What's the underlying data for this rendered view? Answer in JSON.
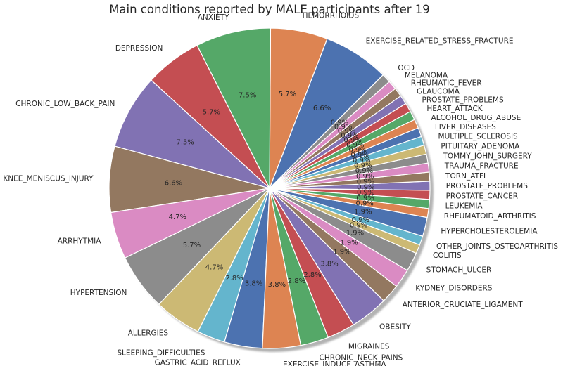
{
  "chart_data": {
    "type": "pie",
    "title": "Main conditions reported by MALE participants after 19",
    "start_angle_deg": 45,
    "direction": "counterclockwise",
    "shadow": true,
    "slices": [
      {
        "label": "EXERCISE_RELATED_STRESS_FRACTURE",
        "value": 6.6,
        "pct_label": "6.6%",
        "color": "#4c72b0"
      },
      {
        "label": "HEMORRHOIDS",
        "value": 5.7,
        "pct_label": "5.7%",
        "color": "#dd8452"
      },
      {
        "label": "ANXIETY",
        "value": 7.5,
        "pct_label": "7.5%",
        "color": "#55a868"
      },
      {
        "label": "DEPRESSION",
        "value": 5.7,
        "pct_label": "5.7%",
        "color": "#c44e52"
      },
      {
        "label": "CHRONIC_LOW_BACK_PAIN",
        "value": 7.5,
        "pct_label": "7.5%",
        "color": "#8172b3"
      },
      {
        "label": "KNEE_MENISCUS_INJURY",
        "value": 6.6,
        "pct_label": "6.6%",
        "color": "#937860"
      },
      {
        "label": "ARRHYTMIA",
        "value": 4.7,
        "pct_label": "4.7%",
        "color": "#da8bc3"
      },
      {
        "label": "HYPERTENSION",
        "value": 5.7,
        "pct_label": "5.7%",
        "color": "#8c8c8c"
      },
      {
        "label": "ALLERGIES",
        "value": 4.7,
        "pct_label": "4.7%",
        "color": "#ccb974"
      },
      {
        "label": "SLEEPING_DIFFICULTIES",
        "value": 2.8,
        "pct_label": "2.8%",
        "color": "#64b5cd"
      },
      {
        "label": "GASTRIC_ACID_REFLUX",
        "value": 3.8,
        "pct_label": "3.8%",
        "color": "#4c72b0"
      },
      {
        "label": "EXERCISE_INDUCE_ASTHMA",
        "value": 3.8,
        "pct_label": "3.8%",
        "color": "#dd8452"
      },
      {
        "label": "CHRONIC_NECK_PAINS",
        "value": 2.8,
        "pct_label": "2.8%",
        "color": "#55a868"
      },
      {
        "label": "MIGRAINES",
        "value": 2.8,
        "pct_label": "2.8%",
        "color": "#c44e52"
      },
      {
        "label": "OBESITY",
        "value": 3.8,
        "pct_label": "3.8%",
        "color": "#8172b3"
      },
      {
        "label": "ANTERIOR_CRUCIATE_LIGAMENT",
        "value": 1.9,
        "pct_label": "1.9%",
        "color": "#937860"
      },
      {
        "label": "KYDNEY_DISORDERS",
        "value": 1.9,
        "pct_label": "1.9%",
        "color": "#da8bc3"
      },
      {
        "label": "STOMACH_ULCER",
        "value": 1.9,
        "pct_label": "1.9%",
        "color": "#8c8c8c"
      },
      {
        "label": "COLITIS",
        "value": 0.9,
        "pct_label": "0.9%",
        "color": "#ccb974"
      },
      {
        "label": "OTHER_JOINTS_OSTEOARTHRITIS",
        "value": 0.9,
        "pct_label": "0.9%",
        "color": "#64b5cd"
      },
      {
        "label": "HYPERCHOLESTEROLEMIA",
        "value": 1.9,
        "pct_label": "1.9%",
        "color": "#4c72b0"
      },
      {
        "label": "RHEUMATOID_ARTHRITIS",
        "value": 0.9,
        "pct_label": "0.9%",
        "color": "#dd8452"
      },
      {
        "label": "LEUKEMIA",
        "value": 0.9,
        "pct_label": "0.9%",
        "color": "#55a868"
      },
      {
        "label": "PROSTATE_CANCER",
        "value": 0.9,
        "pct_label": "0.9%",
        "color": "#c44e52"
      },
      {
        "label": "PROSTATE_PROBLEMS",
        "value": 0.9,
        "pct_label": "0.9%",
        "color": "#8172b3"
      },
      {
        "label": "TORN_ATFL",
        "value": 0.9,
        "pct_label": "0.9%",
        "color": "#937860"
      },
      {
        "label": "TRAUMA_FRACTURE",
        "value": 0.9,
        "pct_label": "0.9%",
        "color": "#da8bc3"
      },
      {
        "label": "TOMMY_JOHN_SURGERY",
        "value": 0.9,
        "pct_label": "0.9%",
        "color": "#8c8c8c"
      },
      {
        "label": "PITUITARY_ADENOMA",
        "value": 0.9,
        "pct_label": "0.9%",
        "color": "#ccb974"
      },
      {
        "label": "MULTIPLE_SCLEROSIS",
        "value": 0.9,
        "pct_label": "0.9%",
        "color": "#64b5cd"
      },
      {
        "label": "LIVER_DISEASES",
        "value": 0.9,
        "pct_label": "0.9%",
        "color": "#4c72b0"
      },
      {
        "label": "ALCOHOL_DRUG_ABUSE",
        "value": 0.9,
        "pct_label": "0.9%",
        "color": "#dd8452"
      },
      {
        "label": "HEART_ATTACK",
        "value": 0.9,
        "pct_label": "0.9%",
        "color": "#55a868"
      },
      {
        "label": "PROSTATE_PROBLEMS",
        "value": 0.9,
        "pct_label": "0.9%",
        "color": "#c44e52"
      },
      {
        "label": "GLAUCOMA",
        "value": 0.9,
        "pct_label": "0.9%",
        "color": "#8172b3"
      },
      {
        "label": "RHEUMATIC_FEVER",
        "value": 0.9,
        "pct_label": "0.9%",
        "color": "#937860"
      },
      {
        "label": "MELANOMA",
        "value": 0.9,
        "pct_label": "0.9%",
        "color": "#da8bc3"
      },
      {
        "label": "OCD",
        "value": 0.9,
        "pct_label": "0.9%",
        "color": "#8c8c8c"
      }
    ]
  }
}
